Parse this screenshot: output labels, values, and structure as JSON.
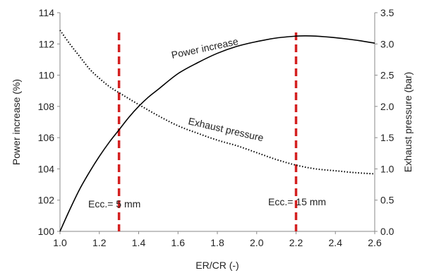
{
  "chart_data": {
    "type": "line",
    "title": "",
    "xlabel": "ER/CR (-)",
    "ylabel_left": "Power increase (%)",
    "ylabel_right": "Exhaust pressure  (bar)",
    "xlim": [
      1.0,
      2.6
    ],
    "xticks": [
      "1.0",
      "1.2",
      "1.4",
      "1.6",
      "1.8",
      "2.0",
      "2.2",
      "2.4",
      "2.6"
    ],
    "ylim_left": [
      100,
      114
    ],
    "yticks_left": [
      "100",
      "102",
      "104",
      "106",
      "108",
      "110",
      "112",
      "114"
    ],
    "ylim_right": [
      0.0,
      3.5
    ],
    "yticks_right": [
      "0.0",
      "0.5",
      "1.0",
      "1.5",
      "2.0",
      "2.5",
      "3.0",
      "3.5"
    ],
    "grid": false,
    "series": [
      {
        "name": "Power increase",
        "axis": "left",
        "style": "solid",
        "color": "#000000",
        "x": [
          1.0,
          1.05,
          1.1,
          1.15,
          1.2,
          1.25,
          1.3,
          1.35,
          1.4,
          1.45,
          1.5,
          1.6,
          1.7,
          1.8,
          1.9,
          2.0,
          2.1,
          2.2,
          2.25,
          2.3,
          2.4,
          2.5,
          2.6
        ],
        "values": [
          100.0,
          101.4,
          102.7,
          103.8,
          104.8,
          105.7,
          106.5,
          107.3,
          108.0,
          108.6,
          109.1,
          110.1,
          110.8,
          111.4,
          111.85,
          112.15,
          112.38,
          112.5,
          112.52,
          112.5,
          112.4,
          112.25,
          112.05
        ]
      },
      {
        "name": "Exhaust pressure",
        "axis": "right",
        "style": "dotted",
        "color": "#000000",
        "x": [
          1.0,
          1.05,
          1.1,
          1.15,
          1.2,
          1.25,
          1.3,
          1.4,
          1.5,
          1.6,
          1.7,
          1.8,
          1.9,
          2.0,
          2.1,
          2.2,
          2.3,
          2.4,
          2.5,
          2.6
        ],
        "values": [
          3.22,
          3.0,
          2.8,
          2.6,
          2.45,
          2.32,
          2.22,
          2.03,
          1.85,
          1.69,
          1.57,
          1.46,
          1.37,
          1.26,
          1.15,
          1.06,
          1.0,
          0.97,
          0.94,
          0.92
        ]
      }
    ],
    "reference_lines": [
      {
        "x": 1.3,
        "label": "Ecc.= 5 mm",
        "color": "#d42020",
        "style": "dashed"
      },
      {
        "x": 2.2,
        "label": "Ecc.= 15 mm",
        "color": "#d42020",
        "style": "dashed"
      }
    ]
  }
}
